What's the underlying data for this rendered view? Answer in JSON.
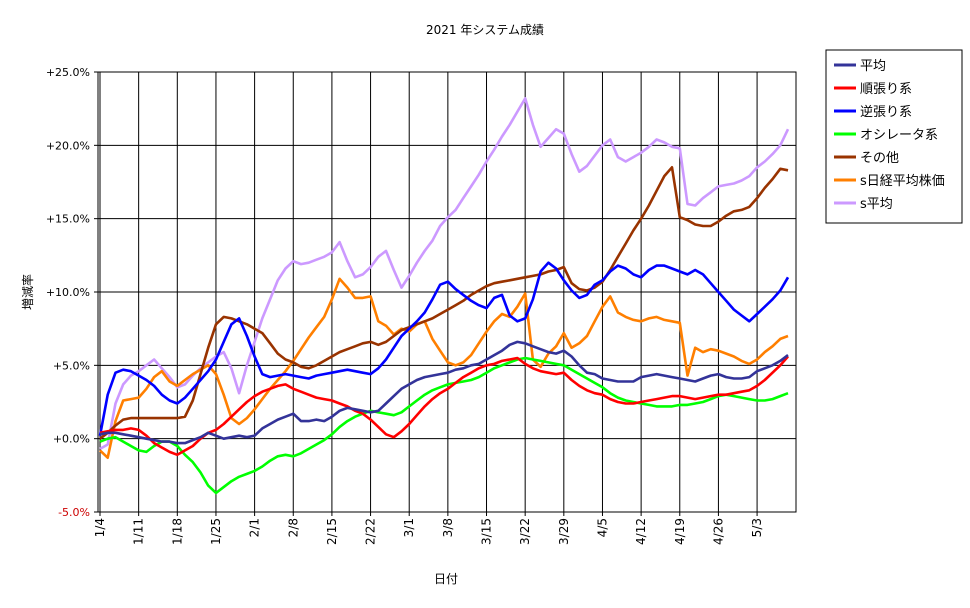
{
  "chart_data": {
    "type": "line",
    "title": "2021 年システム成績",
    "xlabel": "日付",
    "ylabel": "増減率",
    "ylim": [
      -5,
      25
    ],
    "y_ticks": [
      "-5.0%",
      "+0.0%",
      "+5.0%",
      "+10.0%",
      "+15.0%",
      "+20.0%",
      "+25.0%"
    ],
    "y_tick_values": [
      -5,
      0,
      5,
      10,
      15,
      20,
      25
    ],
    "x_tick_labels": [
      "1/4",
      "1/11",
      "1/18",
      "1/25",
      "2/1",
      "2/8",
      "2/15",
      "2/22",
      "3/1",
      "3/8",
      "3/15",
      "3/22",
      "3/29",
      "4/5",
      "4/12",
      "4/19",
      "4/26",
      "5/3"
    ],
    "grid": "vertical lines at week ticks",
    "legend": "right",
    "dates": [
      "1/4",
      "1/5",
      "1/6",
      "1/7",
      "1/8",
      "1/11",
      "1/12",
      "1/13",
      "1/14",
      "1/15",
      "1/18",
      "1/19",
      "1/20",
      "1/21",
      "1/22",
      "1/25",
      "1/26",
      "1/27",
      "1/28",
      "1/29",
      "2/1",
      "2/2",
      "2/3",
      "2/4",
      "2/5",
      "2/8",
      "2/9",
      "2/10",
      "2/11",
      "2/12",
      "2/15",
      "2/16",
      "2/17",
      "2/18",
      "2/19",
      "2/22",
      "2/23",
      "2/24",
      "2/25",
      "2/26",
      "3/1",
      "3/2",
      "3/3",
      "3/4",
      "3/5",
      "3/8",
      "3/9",
      "3/10",
      "3/11",
      "3/12",
      "3/15",
      "3/16",
      "3/17",
      "3/18",
      "3/19",
      "3/22",
      "3/23",
      "3/24",
      "3/25",
      "3/26",
      "3/29",
      "3/30",
      "3/31",
      "4/1",
      "4/2",
      "4/5",
      "4/6",
      "4/7",
      "4/8",
      "4/9",
      "4/12",
      "4/13",
      "4/14",
      "4/15",
      "4/16",
      "4/19",
      "4/20",
      "4/21",
      "4/22",
      "4/23",
      "4/26",
      "4/27",
      "4/28",
      "4/29",
      "4/30",
      "5/3",
      "5/4",
      "5/5",
      "5/6",
      "5/7"
    ],
    "series": [
      {
        "name": "平均",
        "color": "#333399",
        "values": [
          0.3,
          0.4,
          0.4,
          0.3,
          0.2,
          0.1,
          0.0,
          -0.1,
          -0.2,
          -0.2,
          -0.3,
          -0.3,
          -0.1,
          0.1,
          0.4,
          0.2,
          0.0,
          0.1,
          0.2,
          0.1,
          0.2,
          0.7,
          1.0,
          1.3,
          1.5,
          1.7,
          1.2,
          1.2,
          1.3,
          1.2,
          1.5,
          1.9,
          2.1,
          2.0,
          1.9,
          1.8,
          1.9,
          2.4,
          2.9,
          3.4,
          3.7,
          4.0,
          4.2,
          4.3,
          4.4,
          4.5,
          4.7,
          4.8,
          5.0,
          5.1,
          5.4,
          5.7,
          6.0,
          6.4,
          6.6,
          6.5,
          6.3,
          6.1,
          5.9,
          5.8,
          6.0,
          5.6,
          5.0,
          4.5,
          4.4,
          4.1,
          4.0,
          3.9,
          3.9,
          3.9,
          4.2,
          4.3,
          4.4,
          4.3,
          4.2,
          4.1,
          4.0,
          3.9,
          4.1,
          4.3,
          4.4,
          4.2,
          4.1,
          4.1,
          4.2,
          4.6,
          4.8,
          5.0,
          5.3,
          5.7
        ]
      },
      {
        "name": "順張り系",
        "color": "#ff0000",
        "values": [
          0.4,
          0.5,
          0.6,
          0.6,
          0.7,
          0.6,
          0.2,
          -0.3,
          -0.6,
          -0.9,
          -1.1,
          -0.8,
          -0.5,
          0.0,
          0.4,
          0.6,
          1.0,
          1.5,
          2.0,
          2.5,
          2.9,
          3.2,
          3.4,
          3.6,
          3.7,
          3.4,
          3.2,
          3.0,
          2.8,
          2.7,
          2.6,
          2.4,
          2.2,
          1.9,
          1.7,
          1.3,
          0.8,
          0.3,
          0.1,
          0.5,
          1.0,
          1.6,
          2.2,
          2.7,
          3.1,
          3.4,
          3.8,
          4.2,
          4.5,
          4.8,
          5.0,
          5.1,
          5.3,
          5.4,
          5.5,
          5.1,
          4.8,
          4.6,
          4.5,
          4.4,
          4.5,
          4.0,
          3.6,
          3.3,
          3.1,
          3.0,
          2.7,
          2.5,
          2.4,
          2.4,
          2.5,
          2.6,
          2.7,
          2.8,
          2.9,
          2.9,
          2.8,
          2.7,
          2.8,
          2.9,
          3.0,
          3.0,
          3.1,
          3.2,
          3.3,
          3.6,
          4.0,
          4.5,
          5.0,
          5.6
        ]
      },
      {
        "name": "逆張り系",
        "color": "#0000ff",
        "values": [
          0.2,
          3.0,
          4.5,
          4.7,
          4.6,
          4.3,
          4.0,
          3.6,
          3.0,
          2.6,
          2.4,
          2.8,
          3.4,
          4.0,
          4.6,
          5.4,
          6.6,
          7.8,
          8.2,
          7.0,
          5.6,
          4.4,
          4.2,
          4.3,
          4.4,
          4.3,
          4.2,
          4.1,
          4.3,
          4.4,
          4.5,
          4.6,
          4.7,
          4.6,
          4.5,
          4.4,
          4.8,
          5.4,
          6.2,
          7.0,
          7.5,
          8.0,
          8.6,
          9.5,
          10.5,
          10.7,
          10.2,
          9.8,
          9.4,
          9.1,
          8.9,
          9.6,
          9.8,
          8.4,
          8.0,
          8.2,
          9.5,
          11.4,
          12.0,
          11.6,
          10.8,
          10.1,
          9.6,
          9.8,
          10.5,
          10.8,
          11.4,
          11.8,
          11.6,
          11.2,
          11.0,
          11.5,
          11.8,
          11.8,
          11.6,
          11.4,
          11.2,
          11.5,
          11.2,
          10.6,
          10.0,
          9.4,
          8.8,
          8.4,
          8.0,
          8.5,
          9.0,
          9.5,
          10.1,
          11.0
        ]
      },
      {
        "name": "オシレータ系",
        "color": "#00ff00",
        "values": [
          -0.2,
          0.0,
          0.1,
          -0.2,
          -0.5,
          -0.8,
          -0.9,
          -0.5,
          -0.2,
          -0.2,
          -0.5,
          -1.1,
          -1.6,
          -2.3,
          -3.2,
          -3.7,
          -3.3,
          -2.9,
          -2.6,
          -2.4,
          -2.2,
          -1.9,
          -1.5,
          -1.2,
          -1.1,
          -1.2,
          -1.0,
          -0.7,
          -0.4,
          -0.1,
          0.3,
          0.8,
          1.2,
          1.5,
          1.7,
          1.9,
          1.8,
          1.7,
          1.6,
          1.8,
          2.2,
          2.6,
          3.0,
          3.3,
          3.5,
          3.7,
          3.8,
          3.9,
          4.0,
          4.2,
          4.5,
          4.8,
          5.0,
          5.2,
          5.4,
          5.5,
          5.4,
          5.3,
          5.2,
          5.1,
          5.0,
          4.7,
          4.4,
          4.1,
          3.8,
          3.5,
          3.1,
          2.8,
          2.6,
          2.5,
          2.4,
          2.3,
          2.2,
          2.2,
          2.2,
          2.3,
          2.3,
          2.4,
          2.5,
          2.7,
          2.9,
          3.0,
          2.9,
          2.8,
          2.7,
          2.6,
          2.6,
          2.7,
          2.9,
          3.1
        ]
      },
      {
        "name": "その他",
        "color": "#993300",
        "values": [
          0.0,
          0.4,
          0.9,
          1.3,
          1.4,
          1.4,
          1.4,
          1.4,
          1.4,
          1.4,
          1.4,
          1.5,
          2.6,
          4.4,
          6.2,
          7.8,
          8.3,
          8.2,
          8.0,
          7.8,
          7.5,
          7.2,
          6.5,
          5.8,
          5.4,
          5.2,
          4.9,
          4.8,
          5.0,
          5.3,
          5.6,
          5.9,
          6.1,
          6.3,
          6.5,
          6.6,
          6.4,
          6.6,
          7.0,
          7.4,
          7.6,
          7.8,
          8.0,
          8.2,
          8.5,
          8.8,
          9.1,
          9.4,
          9.8,
          10.1,
          10.4,
          10.6,
          10.7,
          10.8,
          10.9,
          11.0,
          11.1,
          11.2,
          11.4,
          11.5,
          11.7,
          10.6,
          10.2,
          10.1,
          10.3,
          10.7,
          11.5,
          12.4,
          13.3,
          14.2,
          15.0,
          15.9,
          16.9,
          17.9,
          18.5,
          15.1,
          14.9,
          14.6,
          14.5,
          14.5,
          14.8,
          15.2,
          15.5,
          15.6,
          15.8,
          16.4,
          17.1,
          17.7,
          18.4,
          18.3
        ]
      },
      {
        "name": "s日経平均株価",
        "color": "#ff7f00",
        "values": [
          -0.8,
          -1.3,
          1.2,
          2.6,
          2.7,
          2.8,
          3.4,
          4.2,
          4.6,
          3.9,
          3.6,
          4.0,
          4.4,
          4.7,
          5.0,
          4.4,
          3.0,
          1.4,
          1.0,
          1.4,
          2.0,
          2.7,
          3.4,
          4.0,
          4.6,
          5.3,
          6.1,
          6.9,
          7.6,
          8.3,
          9.5,
          10.9,
          10.3,
          9.6,
          9.6,
          9.7,
          8.0,
          7.7,
          7.1,
          7.5,
          7.3,
          7.8,
          8.0,
          6.8,
          6.0,
          5.2,
          5.0,
          5.2,
          5.7,
          6.5,
          7.3,
          8.0,
          8.5,
          8.3,
          9.0,
          9.9,
          5.4,
          4.9,
          5.8,
          6.3,
          7.2,
          6.2,
          6.5,
          7.0,
          8.0,
          9.0,
          9.7,
          8.6,
          8.3,
          8.1,
          8.0,
          8.2,
          8.3,
          8.1,
          8.0,
          7.9,
          4.3,
          6.2,
          5.9,
          6.1,
          6.0,
          5.8,
          5.6,
          5.3,
          5.1,
          5.4,
          5.9,
          6.3,
          6.8,
          7.0
        ]
      },
      {
        "name": "s平均",
        "color": "#cc99ff",
        "values": [
          -0.7,
          -0.4,
          2.4,
          3.7,
          4.3,
          4.6,
          5.0,
          5.4,
          4.8,
          4.2,
          3.5,
          3.7,
          4.3,
          4.8,
          5.2,
          5.6,
          5.9,
          4.8,
          3.1,
          5.0,
          6.6,
          8.2,
          9.5,
          10.8,
          11.6,
          12.1,
          11.9,
          12.0,
          12.2,
          12.4,
          12.7,
          13.4,
          12.1,
          11.0,
          11.2,
          11.7,
          12.4,
          12.8,
          11.5,
          10.3,
          11.1,
          12.0,
          12.8,
          13.5,
          14.5,
          15.1,
          15.6,
          16.4,
          17.2,
          18.0,
          18.9,
          19.7,
          20.6,
          21.4,
          22.3,
          23.2,
          21.4,
          19.9,
          20.5,
          21.1,
          20.8,
          19.4,
          18.2,
          18.6,
          19.3,
          20.0,
          20.4,
          19.2,
          18.9,
          19.2,
          19.5,
          19.9,
          20.4,
          20.2,
          19.9,
          19.8,
          16.0,
          15.9,
          16.4,
          16.8,
          17.2,
          17.3,
          17.4,
          17.6,
          17.9,
          18.5,
          18.9,
          19.4,
          20.0,
          21.1
        ]
      }
    ]
  }
}
